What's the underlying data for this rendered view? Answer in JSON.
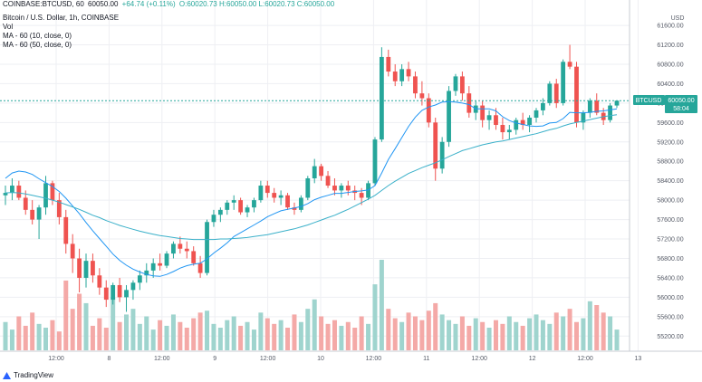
{
  "header": {
    "symbol_line": "COINBASE:BTCUSD, 60",
    "price": "60050.00",
    "change": "+64.74 (+0.11%)",
    "ohlc": "O:60020.73 H:60050.00 L:60020.73 C:60050.00"
  },
  "legend": {
    "title": "Bitcoin / U.S. Dollar, 1h, COINBASE",
    "vol": "Vol",
    "ma_fast": "MA - 60 (10, close, 0)",
    "ma_slow": "MA - 60 (50, close, 0)"
  },
  "price_tag": {
    "symbol": "BTCUSD",
    "price": "60050.00",
    "countdown": "58:04"
  },
  "brand": {
    "name": "TradingView"
  },
  "colors": {
    "up": "#26a69a",
    "down": "#ef5350",
    "vol_up": "#9fd4ce",
    "vol_down": "#f4a9a7",
    "ma_fast": "#2196f3",
    "ma_slow": "#3ab0c9",
    "grid": "#eeeff3",
    "axis_text": "#555a66"
  },
  "chart_data": {
    "type": "candlestick",
    "currency": "USD",
    "y_ticks": [
      "61600.00",
      "61200.00",
      "60800.00",
      "60400.00",
      "60000.00",
      "59600.00",
      "59200.00",
      "58800.00",
      "58400.00",
      "58000.00",
      "57600.00",
      "57200.00",
      "56800.00",
      "56400.00",
      "56000.00",
      "55600.00",
      "55200.00"
    ],
    "ylim": [
      55000,
      61900
    ],
    "x_labels": [
      "12:00",
      "8",
      "12:00",
      "9",
      "12:00",
      "10",
      "12:00",
      "11",
      "12:00",
      "12",
      "12:00",
      "13"
    ],
    "candles": [
      [
        58100,
        58300,
        57900,
        58150
      ],
      [
        58150,
        58450,
        58000,
        58300
      ],
      [
        58300,
        58400,
        58000,
        58050
      ],
      [
        58050,
        58200,
        57700,
        57800
      ],
      [
        57800,
        58000,
        57500,
        57600
      ],
      [
        57600,
        57900,
        57200,
        57850
      ],
      [
        57850,
        58500,
        57700,
        58350
      ],
      [
        58350,
        58400,
        57900,
        58000
      ],
      [
        58000,
        58150,
        57500,
        57650
      ],
      [
        57650,
        57800,
        56900,
        57100
      ],
      [
        57100,
        57300,
        56500,
        56800
      ],
      [
        56800,
        57000,
        56100,
        56400
      ],
      [
        56400,
        56900,
        56200,
        56750
      ],
      [
        56750,
        56900,
        56300,
        56450
      ],
      [
        56450,
        56600,
        56050,
        56200
      ],
      [
        56200,
        56350,
        55800,
        55950
      ],
      [
        55950,
        56300,
        55850,
        56250
      ],
      [
        56250,
        56400,
        55900,
        56000
      ],
      [
        56000,
        56250,
        55700,
        56150
      ],
      [
        56150,
        56350,
        55950,
        56300
      ],
      [
        56300,
        56550,
        56150,
        56450
      ],
      [
        56450,
        56700,
        56300,
        56550
      ],
      [
        56550,
        56800,
        56400,
        56700
      ],
      [
        56700,
        56900,
        56550,
        56650
      ],
      [
        56650,
        56950,
        56600,
        56900
      ],
      [
        56900,
        57150,
        56800,
        57100
      ],
      [
        57100,
        57250,
        56900,
        57000
      ],
      [
        57000,
        57150,
        56800,
        56950
      ],
      [
        56950,
        57050,
        56650,
        56700
      ],
      [
        56700,
        56850,
        56400,
        56500
      ],
      [
        56500,
        57600,
        56450,
        57550
      ],
      [
        57550,
        57800,
        57450,
        57700
      ],
      [
        57700,
        57850,
        57550,
        57800
      ],
      [
        57800,
        58000,
        57700,
        57950
      ],
      [
        57950,
        58100,
        57800,
        58000
      ],
      [
        58000,
        58050,
        57700,
        57750
      ],
      [
        57750,
        57900,
        57650,
        57850
      ],
      [
        57850,
        58050,
        57750,
        58000
      ],
      [
        58000,
        58400,
        57950,
        58300
      ],
      [
        58300,
        58400,
        58050,
        58150
      ],
      [
        58150,
        58250,
        57950,
        58050
      ],
      [
        58050,
        58200,
        57900,
        58100
      ],
      [
        58100,
        58150,
        57800,
        57850
      ],
      [
        57850,
        57950,
        57700,
        57800
      ],
      [
        57800,
        58100,
        57750,
        58050
      ],
      [
        58050,
        58500,
        58000,
        58450
      ],
      [
        58450,
        58850,
        58350,
        58700
      ],
      [
        58700,
        58750,
        58400,
        58500
      ],
      [
        58500,
        58600,
        58250,
        58300
      ],
      [
        58300,
        58450,
        58100,
        58200
      ],
      [
        58200,
        58350,
        58050,
        58300
      ],
      [
        58300,
        58400,
        58100,
        58200
      ],
      [
        58200,
        58300,
        58000,
        58150
      ],
      [
        58150,
        58250,
        57900,
        58050
      ],
      [
        58050,
        58400,
        58000,
        58350
      ],
      [
        58350,
        59300,
        58300,
        59250
      ],
      [
        59250,
        61150,
        59200,
        60950
      ],
      [
        60950,
        61100,
        60550,
        60650
      ],
      [
        60650,
        60800,
        60350,
        60450
      ],
      [
        60450,
        60800,
        60350,
        60700
      ],
      [
        60700,
        60850,
        60450,
        60550
      ],
      [
        60550,
        60650,
        60100,
        60200
      ],
      [
        60200,
        60450,
        59950,
        60100
      ],
      [
        60100,
        60200,
        59500,
        59600
      ],
      [
        59600,
        59700,
        58400,
        58650
      ],
      [
        58650,
        59300,
        58550,
        59200
      ],
      [
        59200,
        60350,
        59100,
        60250
      ],
      [
        60250,
        60600,
        60150,
        60550
      ],
      [
        60550,
        60650,
        60050,
        60200
      ],
      [
        60200,
        60350,
        59700,
        59800
      ],
      [
        59800,
        60050,
        59650,
        59950
      ],
      [
        59950,
        60050,
        59500,
        59650
      ],
      [
        59650,
        59850,
        59450,
        59750
      ],
      [
        59750,
        59900,
        59450,
        59550
      ],
      [
        59550,
        59700,
        59250,
        59400
      ],
      [
        59400,
        59550,
        59250,
        59450
      ],
      [
        59450,
        59700,
        59350,
        59650
      ],
      [
        59650,
        59800,
        59450,
        59550
      ],
      [
        59550,
        59750,
        59400,
        59700
      ],
      [
        59700,
        59900,
        59600,
        59850
      ],
      [
        59850,
        60100,
        59750,
        60000
      ],
      [
        60000,
        60450,
        59950,
        60400
      ],
      [
        60400,
        60500,
        59900,
        60000
      ],
      [
        60000,
        60900,
        59950,
        60850
      ],
      [
        60850,
        61200,
        60700,
        60750
      ],
      [
        60750,
        60850,
        59500,
        59600
      ],
      [
        59600,
        59850,
        59450,
        59800
      ],
      [
        59800,
        60100,
        59700,
        60050
      ],
      [
        60050,
        60200,
        59750,
        59800
      ],
      [
        59800,
        59900,
        59550,
        59650
      ],
      [
        59650,
        60000,
        59600,
        59950
      ],
      [
        59950,
        60050,
        59900,
        60050
      ]
    ],
    "volume": [
      15,
      11,
      18,
      13,
      20,
      14,
      12,
      16,
      10,
      37,
      22,
      30,
      25,
      13,
      17,
      12,
      28,
      15,
      19,
      22,
      14,
      18,
      11,
      16,
      13,
      19,
      15,
      12,
      17,
      20,
      21,
      14,
      12,
      16,
      18,
      13,
      15,
      11,
      20,
      17,
      14,
      16,
      12,
      19,
      15,
      22,
      27,
      18,
      14,
      16,
      13,
      15,
      12,
      18,
      14,
      35,
      48,
      22,
      17,
      15,
      20,
      18,
      16,
      21,
      25,
      19,
      16,
      14,
      18,
      13,
      17,
      15,
      12,
      16,
      14,
      18,
      15,
      13,
      17,
      19,
      16,
      14,
      20,
      18,
      22,
      15,
      17,
      26,
      24,
      20,
      18,
      11
    ],
    "ma_10": [
      58450,
      58560,
      58600,
      58580,
      58530,
      58440,
      58360,
      58280,
      58180,
      58040,
      57880,
      57720,
      57540,
      57370,
      57210,
      57050,
      56890,
      56760,
      56660,
      56580,
      56520,
      56470,
      56440,
      56430,
      56470,
      56530,
      56600,
      56650,
      56680,
      56700,
      56790,
      56910,
      57010,
      57120,
      57250,
      57330,
      57410,
      57490,
      57570,
      57660,
      57720,
      57780,
      57810,
      57840,
      57870,
      57930,
      58010,
      58060,
      58100,
      58140,
      58140,
      58160,
      58180,
      58190,
      58210,
      58300,
      58560,
      58840,
      59060,
      59290,
      59520,
      59710,
      59850,
      59920,
      59960,
      60020,
      60030,
      60020,
      60000,
      59970,
      59880,
      59880,
      59880,
      59840,
      59720,
      59640,
      59590,
      59560,
      59530,
      59520,
      59530,
      59590,
      59600,
      59680,
      59810,
      59800,
      59800,
      59810,
      59830,
      59840,
      59860,
      59880
    ],
    "ma_50": [
      58150,
      58160,
      58150,
      58130,
      58100,
      58070,
      58040,
      58000,
      57960,
      57910,
      57860,
      57810,
      57750,
      57690,
      57640,
      57580,
      57530,
      57480,
      57440,
      57400,
      57360,
      57330,
      57300,
      57270,
      57250,
      57230,
      57210,
      57200,
      57190,
      57190,
      57190,
      57190,
      57200,
      57200,
      57210,
      57220,
      57230,
      57250,
      57270,
      57290,
      57320,
      57350,
      57380,
      57410,
      57450,
      57490,
      57540,
      57590,
      57640,
      57690,
      57750,
      57810,
      57880,
      57950,
      58020,
      58100,
      58200,
      58300,
      58390,
      58470,
      58550,
      58610,
      58670,
      58720,
      58770,
      58830,
      58900,
      58960,
      59020,
      59060,
      59100,
      59140,
      59170,
      59200,
      59220,
      59250,
      59280,
      59310,
      59340,
      59370,
      59410,
      59450,
      59480,
      59530,
      59570,
      59600,
      59630,
      59660,
      59690,
      59720,
      59740,
      59760
    ]
  }
}
